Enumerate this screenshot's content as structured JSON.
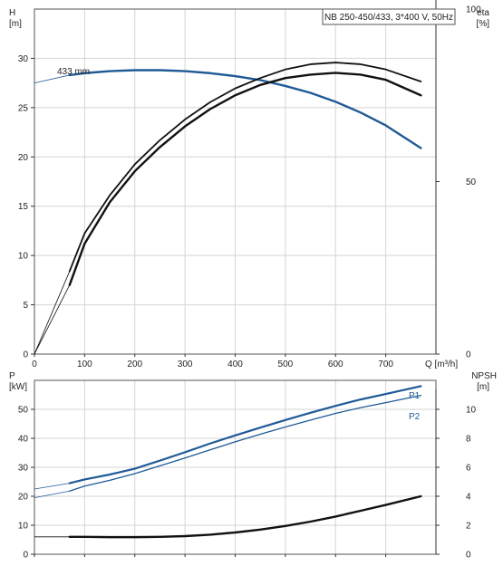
{
  "colors": {
    "head": "#1f5a96",
    "p1": "#1f5a96",
    "p2": "#1f5a96",
    "eta": "#111111",
    "npsh": "#111111",
    "grid": "#d4d4d4",
    "frame": "#555555"
  },
  "chart_data": [
    {
      "type": "line",
      "title": "NB 250-450/433, 3*400 V, 50Hz",
      "xlabel": "Q [m³/h]",
      "xlim": [
        0,
        800
      ],
      "x_ticks": [
        0,
        100,
        200,
        300,
        400,
        500,
        600,
        700
      ],
      "y_label_top": "H",
      "y_label_bottom": "[m]",
      "ylim": [
        0,
        35
      ],
      "y_ticks": [
        0,
        5,
        10,
        15,
        20,
        25,
        30
      ],
      "y2_label_top": "eta",
      "y2_label_bottom": "[%]",
      "y2lim": [
        0,
        100
      ],
      "y2_ticks": [
        0,
        50,
        100
      ],
      "grid": true,
      "annotations": [
        {
          "text": "433 mm",
          "x": 70,
          "y": 28.4
        }
      ],
      "series": [
        {
          "name": "433 mm",
          "axis": "y",
          "x": [
            0,
            70,
            100,
            150,
            200,
            250,
            300,
            350,
            400,
            450,
            500,
            550,
            600,
            650,
            700,
            770
          ],
          "y": [
            27.5,
            28.3,
            28.5,
            28.7,
            28.8,
            28.8,
            28.7,
            28.5,
            28.2,
            27.8,
            27.2,
            26.5,
            25.6,
            24.5,
            23.2,
            20.9
          ]
        },
        {
          "name": "eta",
          "axis": "y2",
          "x": [
            0,
            70,
            100,
            150,
            200,
            250,
            300,
            350,
            400,
            450,
            500,
            550,
            600,
            650,
            700,
            770
          ],
          "y": [
            0,
            20,
            32,
            44,
            53,
            60,
            66,
            71,
            75,
            78,
            80,
            81,
            81.5,
            81,
            79.5,
            75
          ]
        },
        {
          "name": "eta-upper",
          "axis": "y2",
          "x": [
            0,
            70,
            100,
            150,
            200,
            250,
            300,
            350,
            400,
            450,
            500,
            550,
            600,
            650,
            700,
            770
          ],
          "y": [
            0,
            24,
            35,
            46,
            55,
            62,
            68,
            73,
            77,
            80,
            82.5,
            84,
            84.5,
            84,
            82.5,
            79
          ]
        }
      ]
    },
    {
      "type": "line",
      "xlim": [
        0,
        800
      ],
      "x_ticks": [
        0,
        100,
        200,
        300,
        400,
        500,
        600,
        700
      ],
      "y_label_top": "P",
      "y_label_bottom": "[kW]",
      "ylim": [
        0,
        60
      ],
      "y_ticks": [
        0,
        10,
        20,
        30,
        40,
        50
      ],
      "y2_label_top": "NPSH",
      "y2_label_bottom": "[m]",
      "y2lim": [
        0,
        12
      ],
      "y2_ticks": [
        0,
        2,
        4,
        6,
        8,
        10
      ],
      "grid": true,
      "series": [
        {
          "name": "P1",
          "axis": "y",
          "x": [
            0,
            70,
            100,
            150,
            200,
            250,
            300,
            350,
            400,
            450,
            500,
            550,
            600,
            650,
            700,
            770
          ],
          "y": [
            22.5,
            24.5,
            25.8,
            27.5,
            29.5,
            32.3,
            35.2,
            38.2,
            41,
            43.7,
            46.3,
            48.8,
            51.2,
            53.4,
            55.3,
            58
          ]
        },
        {
          "name": "P2",
          "axis": "y",
          "x": [
            0,
            70,
            100,
            150,
            200,
            250,
            300,
            350,
            400,
            450,
            500,
            550,
            600,
            650,
            700,
            770
          ],
          "y": [
            19.5,
            21.8,
            23.5,
            25.5,
            27.8,
            30.5,
            33.2,
            36,
            38.8,
            41.4,
            43.9,
            46.3,
            48.6,
            50.6,
            52.3,
            54.8
          ]
        },
        {
          "name": "NPSH",
          "axis": "y2",
          "x": [
            0,
            70,
            100,
            150,
            200,
            250,
            300,
            350,
            400,
            450,
            500,
            550,
            600,
            650,
            700,
            770
          ],
          "y": [
            1.2,
            1.2,
            1.2,
            1.18,
            1.18,
            1.2,
            1.25,
            1.35,
            1.5,
            1.7,
            1.95,
            2.25,
            2.6,
            3,
            3.4,
            4
          ]
        }
      ]
    }
  ]
}
